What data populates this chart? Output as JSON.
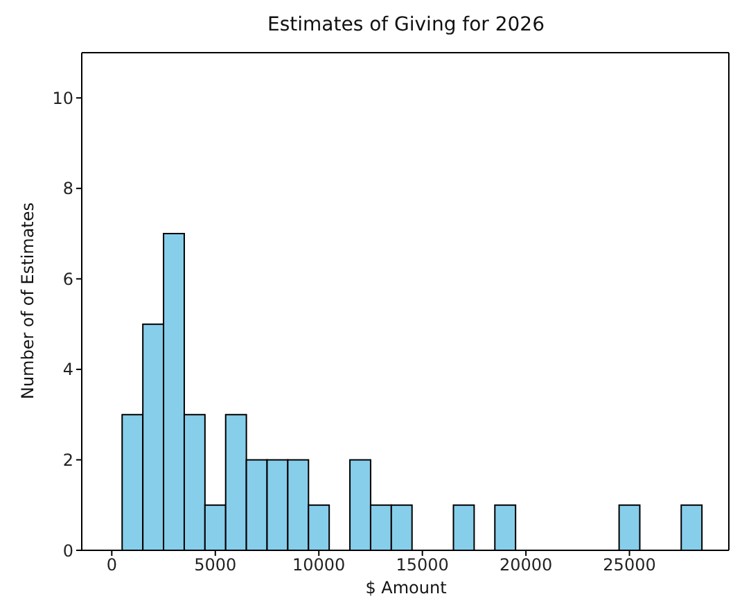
{
  "chart_data": {
    "type": "histogram",
    "title": "Estimates of Giving for 2026",
    "xlabel": "$ Amount",
    "ylabel": "Number of of Estimates",
    "bins": [
      500,
      1500,
      2500,
      3500,
      4500,
      5500,
      6500,
      7500,
      8500,
      9500,
      10500,
      11500,
      12500,
      13500,
      14500,
      15500,
      16500,
      17500,
      18500,
      19500,
      20500,
      21500,
      22500,
      23500,
      24500,
      25500,
      26500,
      27500,
      28500
    ],
    "values": [
      3,
      5,
      7,
      3,
      1,
      3,
      2,
      2,
      2,
      1,
      0,
      2,
      1,
      1,
      0,
      0,
      1,
      0,
      1,
      0,
      0,
      0,
      0,
      0,
      1,
      0,
      0,
      1
    ],
    "color": "#87ceeb",
    "xlim": [
      -1450,
      29800
    ],
    "xticks": [
      0,
      5000,
      10000,
      15000,
      20000,
      25000
    ],
    "ylim": [
      0,
      11
    ],
    "yticks": [
      0,
      2,
      4,
      6,
      8,
      10
    ],
    "grid": false
  }
}
